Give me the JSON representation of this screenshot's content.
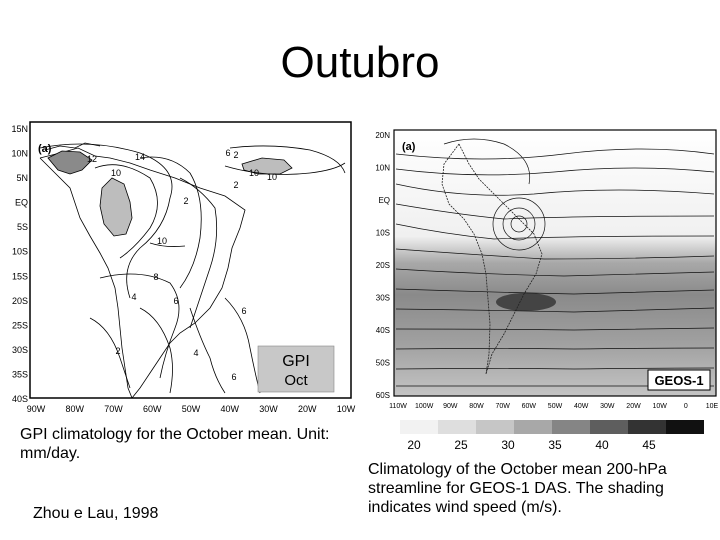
{
  "title": "Outubro",
  "left_figure": {
    "panel_label": "(a)",
    "lat_labels": [
      "15N",
      "10N",
      "5N",
      "EQ",
      "5S",
      "10S",
      "15S",
      "20S",
      "25S",
      "30S",
      "35S",
      "40S"
    ],
    "lon_labels": [
      "90W",
      "80W",
      "70W",
      "60W",
      "50W",
      "40W",
      "30W",
      "20W",
      "10W"
    ],
    "contour_labels": [
      "10",
      "12",
      "14",
      "10",
      "2",
      "2",
      "6",
      "10",
      "8",
      "4",
      "6",
      "2",
      "4",
      "6",
      "6",
      "10",
      "2"
    ],
    "box_title": "GPI",
    "box_month": "Oct"
  },
  "left_caption": "GPI climatology for the October mean. Unit: mm/day.",
  "reference": "Zhou e Lau, 1998",
  "right_figure": {
    "panel_label": "(a)",
    "lat_labels": [
      "20N",
      "10N",
      "EQ",
      "10S",
      "20S",
      "30S",
      "40S",
      "50S",
      "60S"
    ],
    "lon_labels": [
      "110W",
      "100W",
      "90W",
      "80W",
      "70W",
      "60W",
      "50W",
      "40W",
      "30W",
      "20W",
      "10W",
      "0",
      "10E"
    ],
    "model_label": "GEOS-1"
  },
  "color_scale": {
    "values": [
      "20",
      "25",
      "30",
      "35",
      "40",
      "45"
    ],
    "shades": [
      "#f2f2f2",
      "#dedede",
      "#c6c6c6",
      "#a8a8a8",
      "#858585",
      "#5e5e5e",
      "#333333",
      "#111111"
    ]
  },
  "right_caption": "Climatology of the October mean 200-hPa streamline for GEOS-1 DAS. The shading indicates wind speed (m/s)."
}
